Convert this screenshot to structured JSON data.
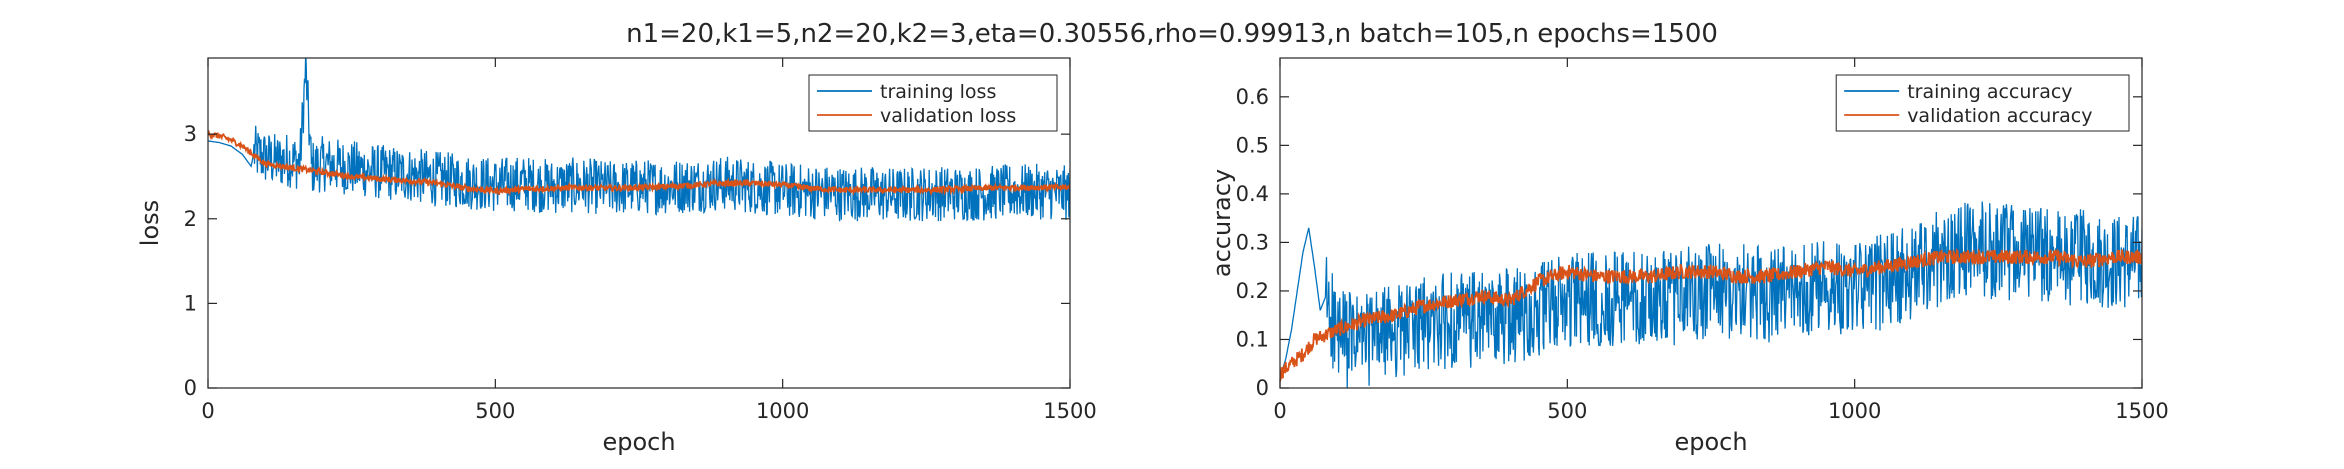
{
  "figure": {
    "title": "n1=20,k1=5,n2=20,k2=3,eta=0.30556,rho=0.99913,n batch=105,n epochs=1500"
  },
  "colors": {
    "training": "#0072BD",
    "validation": "#D95319",
    "axes": "#262626"
  },
  "chart_data": [
    {
      "type": "line",
      "title": "",
      "xlabel": "epoch",
      "ylabel": "loss",
      "xlim": [
        0,
        1500
      ],
      "ylim": [
        0,
        3.9
      ],
      "xticks": [
        0,
        500,
        1000,
        1500
      ],
      "yticks": [
        0,
        1,
        2,
        3
      ],
      "legend": {
        "location": "top-right",
        "entries": [
          "training loss",
          "validation loss"
        ]
      },
      "grid": false,
      "series": [
        {
          "name": "training loss",
          "color": "#0072BD",
          "x": [
            0,
            20,
            40,
            60,
            75,
            80,
            100,
            120,
            140,
            160,
            170,
            180,
            200,
            250,
            300,
            350,
            400,
            450,
            500,
            550,
            600,
            650,
            700,
            750,
            800,
            850,
            900,
            950,
            1000,
            1050,
            1100,
            1150,
            1200,
            1250,
            1300,
            1350,
            1400,
            1450,
            1500
          ],
          "y": [
            2.92,
            2.9,
            2.86,
            2.76,
            2.62,
            2.78,
            2.72,
            2.68,
            2.7,
            2.66,
            3.78,
            2.6,
            2.65,
            2.6,
            2.55,
            2.52,
            2.47,
            2.44,
            2.4,
            2.42,
            2.38,
            2.4,
            2.36,
            2.38,
            2.38,
            2.4,
            2.42,
            2.38,
            2.34,
            2.32,
            2.3,
            2.3,
            2.28,
            2.3,
            2.3,
            2.3,
            2.32,
            2.32,
            2.3
          ],
          "noise": 0.33,
          "noise_start": 80
        },
        {
          "name": "validation loss",
          "color": "#D95319",
          "x": [
            0,
            20,
            40,
            60,
            80,
            100,
            150,
            200,
            250,
            300,
            350,
            400,
            450,
            500,
            550,
            600,
            650,
            700,
            750,
            800,
            850,
            900,
            950,
            1000,
            1050,
            1100,
            1150,
            1200,
            1250,
            1300,
            1350,
            1400,
            1450,
            1500
          ],
          "y": [
            3.0,
            2.98,
            2.93,
            2.86,
            2.75,
            2.65,
            2.6,
            2.55,
            2.5,
            2.47,
            2.45,
            2.42,
            2.36,
            2.33,
            2.35,
            2.36,
            2.37,
            2.36,
            2.37,
            2.38,
            2.4,
            2.42,
            2.42,
            2.4,
            2.36,
            2.34,
            2.34,
            2.34,
            2.34,
            2.35,
            2.36,
            2.37,
            2.37,
            2.37
          ],
          "noise": 0.035,
          "noise_start": 0
        }
      ]
    },
    {
      "type": "line",
      "title": "",
      "xlabel": "epoch",
      "ylabel": "accuracy",
      "xlim": [
        0,
        1500
      ],
      "ylim": [
        0,
        0.68
      ],
      "xticks": [
        0,
        500,
        1000,
        1500
      ],
      "yticks": [
        0,
        0.1,
        0.2,
        0.3,
        0.4,
        0.5,
        0.6
      ],
      "legend": {
        "location": "top-right",
        "entries": [
          "training accuracy",
          "validation accuracy"
        ]
      },
      "grid": false,
      "series": [
        {
          "name": "training accuracy",
          "color": "#0072BD",
          "x": [
            0,
            10,
            20,
            30,
            40,
            50,
            60,
            70,
            80,
            90,
            100,
            150,
            200,
            250,
            300,
            350,
            400,
            450,
            500,
            550,
            600,
            650,
            700,
            750,
            800,
            850,
            900,
            950,
            1000,
            1050,
            1100,
            1150,
            1200,
            1250,
            1300,
            1350,
            1400,
            1450,
            1500
          ],
          "y": [
            0.02,
            0.06,
            0.12,
            0.2,
            0.28,
            0.33,
            0.25,
            0.16,
            0.19,
            0.15,
            0.1,
            0.1,
            0.12,
            0.13,
            0.14,
            0.14,
            0.15,
            0.16,
            0.18,
            0.18,
            0.19,
            0.18,
            0.19,
            0.2,
            0.2,
            0.19,
            0.2,
            0.22,
            0.2,
            0.22,
            0.24,
            0.27,
            0.29,
            0.28,
            0.28,
            0.27,
            0.27,
            0.26,
            0.26
          ],
          "noise": 0.1,
          "noise_start": 80
        },
        {
          "name": "validation accuracy",
          "color": "#D95319",
          "x": [
            0,
            20,
            40,
            60,
            80,
            100,
            150,
            200,
            250,
            300,
            350,
            400,
            450,
            500,
            550,
            600,
            650,
            700,
            750,
            800,
            850,
            900,
            950,
            1000,
            1050,
            1100,
            1150,
            1200,
            1250,
            1300,
            1350,
            1400,
            1450,
            1500
          ],
          "y": [
            0.03,
            0.05,
            0.07,
            0.1,
            0.11,
            0.12,
            0.14,
            0.15,
            0.17,
            0.18,
            0.19,
            0.18,
            0.22,
            0.24,
            0.23,
            0.23,
            0.23,
            0.24,
            0.24,
            0.23,
            0.23,
            0.24,
            0.25,
            0.24,
            0.25,
            0.26,
            0.27,
            0.27,
            0.27,
            0.27,
            0.27,
            0.26,
            0.27,
            0.27
          ],
          "noise": 0.015,
          "noise_start": 0
        }
      ]
    }
  ]
}
